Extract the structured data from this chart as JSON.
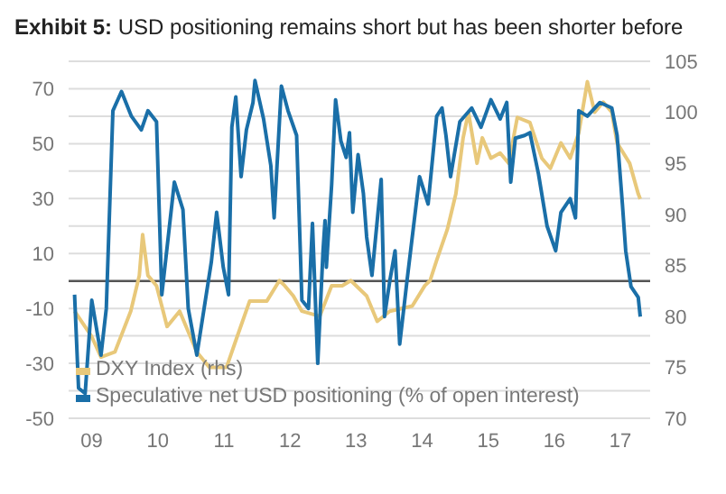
{
  "chart_data": {
    "type": "line",
    "title": "Exhibit 5: USD positioning remains short but has been shorter before",
    "xlim": [
      2008.65,
      2017.45
    ],
    "xticks": [
      {
        "value": 2009,
        "label": "09"
      },
      {
        "value": 2010,
        "label": "10"
      },
      {
        "value": 2011,
        "label": "11"
      },
      {
        "value": 2012,
        "label": "12"
      },
      {
        "value": 2013,
        "label": "13"
      },
      {
        "value": 2014,
        "label": "14"
      },
      {
        "value": 2015,
        "label": "15"
      },
      {
        "value": 2016,
        "label": "16"
      },
      {
        "value": 2017,
        "label": "17"
      }
    ],
    "ylim": [
      -50,
      80
    ],
    "yticks": [
      -50,
      {
        "value": -40,
        "label": null
      },
      -30,
      {
        "value": -20,
        "label": null
      },
      -10,
      {
        "value": 0,
        "label": null
      },
      10,
      {
        "value": 20,
        "label": null
      },
      30,
      {
        "value": 40,
        "label": null
      },
      50,
      {
        "value": 60,
        "label": null
      },
      70,
      {
        "value": 80,
        "label": null
      }
    ],
    "y2lim": [
      70,
      105
    ],
    "y2ticks": [
      70,
      75,
      80,
      85,
      90,
      95,
      100,
      105
    ],
    "grid": "y",
    "legend": "bottom left",
    "marker": "none",
    "line_style": "solid",
    "ref_lines": [
      {
        "axis": "y",
        "value": 0,
        "color": "#555555"
      }
    ],
    "series": [
      {
        "name": "DXY Index (rhs)",
        "color": "#e8c87a",
        "axis": "y2",
        "x": [
          2008.74,
          2009.0,
          2009.14,
          2009.35,
          2009.59,
          2009.72,
          2009.77,
          2009.85,
          2009.98,
          2010.06,
          2010.14,
          2010.33,
          2010.59,
          2010.78,
          2011.04,
          2011.2,
          2011.39,
          2011.65,
          2011.84,
          2011.92,
          2012.05,
          2012.18,
          2012.45,
          2012.63,
          2012.79,
          2012.92,
          2013.16,
          2013.32,
          2013.51,
          2013.85,
          2014.04,
          2014.12,
          2014.22,
          2014.38,
          2014.51,
          2014.62,
          2014.7,
          2014.83,
          2014.91,
          2015.04,
          2015.18,
          2015.31,
          2015.44,
          2015.63,
          2015.81,
          2015.94,
          2016.1,
          2016.24,
          2016.37,
          2016.5,
          2016.61,
          2016.74,
          2016.87,
          2016.95,
          2017.14,
          2017.27,
          2017.3
        ],
        "values": [
          80.5,
          78,
          76,
          76.5,
          80.5,
          84,
          88,
          84,
          83,
          81,
          79,
          80.5,
          76.5,
          75,
          75,
          78,
          81.5,
          81.5,
          83.5,
          83,
          82,
          80.5,
          80,
          83,
          83,
          83.5,
          82,
          79.5,
          80.5,
          81,
          83,
          83.5,
          85.5,
          88.5,
          92,
          97.5,
          100,
          95,
          97.5,
          95.5,
          96,
          95,
          99.5,
          99,
          95.5,
          94.5,
          97,
          95.5,
          98,
          103,
          100,
          101,
          100,
          97,
          95,
          92,
          91.5
        ]
      },
      {
        "name": "Speculative net USD positioning (% of open interest)",
        "color": "#1a6fa8",
        "x": [
          2008.74,
          2008.8,
          2008.9,
          2009.0,
          2009.14,
          2009.22,
          2009.32,
          2009.45,
          2009.6,
          2009.75,
          2009.85,
          2009.98,
          2010.06,
          2010.25,
          2010.38,
          2010.46,
          2010.59,
          2010.81,
          2010.89,
          2010.99,
          2011.07,
          2011.12,
          2011.18,
          2011.26,
          2011.34,
          2011.44,
          2011.47,
          2011.6,
          2011.71,
          2011.76,
          2011.84,
          2011.87,
          2011.97,
          2012.1,
          2012.18,
          2012.28,
          2012.34,
          2012.42,
          2012.5,
          2012.53,
          2012.55,
          2012.63,
          2012.69,
          2012.77,
          2012.85,
          2012.9,
          2012.95,
          2013.03,
          2013.11,
          2013.16,
          2013.24,
          2013.38,
          2013.43,
          2013.51,
          2013.59,
          2013.66,
          2013.77,
          2013.96,
          2014.09,
          2014.22,
          2014.3,
          2014.36,
          2014.43,
          2014.57,
          2014.75,
          2014.89,
          2015.04,
          2015.18,
          2015.28,
          2015.34,
          2015.41,
          2015.55,
          2015.63,
          2015.76,
          2015.89,
          2016.02,
          2016.1,
          2016.24,
          2016.32,
          2016.37,
          2016.5,
          2016.69,
          2016.87,
          2016.95,
          2017.03,
          2017.08,
          2017.16,
          2017.27,
          2017.3
        ],
        "values": [
          -5,
          -39,
          -41,
          -7,
          -27,
          -10,
          62,
          69,
          60,
          55,
          62,
          58,
          -5,
          36,
          26,
          -10,
          -27,
          7,
          25,
          5,
          -5,
          56,
          67,
          38,
          55,
          65,
          73,
          59,
          42,
          23,
          58,
          71,
          62,
          53,
          -7,
          -10,
          21,
          -30,
          11,
          22,
          5,
          35,
          66,
          51,
          45,
          54,
          25,
          46,
          32,
          16,
          2,
          37,
          -13,
          0,
          11,
          -23,
          0,
          38,
          28,
          60,
          63,
          53,
          38,
          58,
          63,
          56,
          66,
          59,
          65,
          36,
          52,
          53,
          54,
          39,
          20,
          11,
          25,
          30,
          23,
          62,
          60,
          65,
          63,
          53,
          28,
          11,
          -2,
          -6,
          -13
        ]
      }
    ]
  }
}
